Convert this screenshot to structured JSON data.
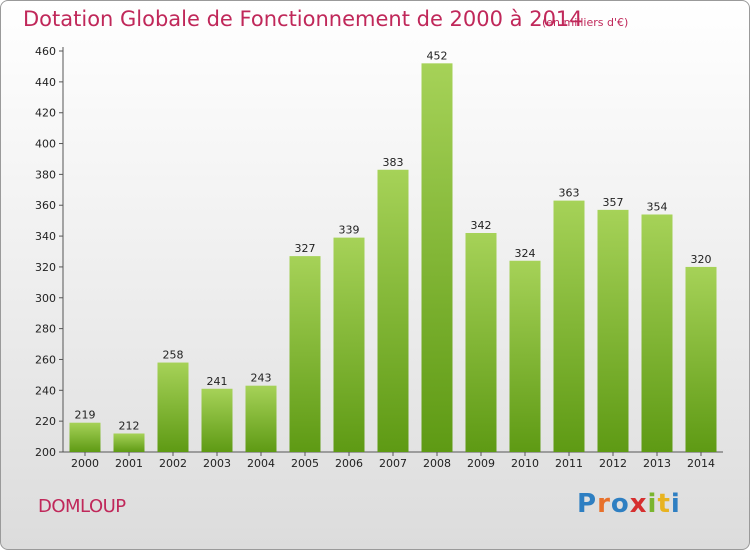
{
  "header": {
    "title": "Dotation Globale de Fonctionnement de 2000 à 2014",
    "unit": "(en milliers d'€)"
  },
  "footer": {
    "commune": "DOMLOUP",
    "logo": "Proxiti"
  },
  "colors": {
    "accent": "#c0285a",
    "bar_top": "#a6d258",
    "bar_bottom": "#5e9a14"
  },
  "chart_data": {
    "type": "bar",
    "title": "Dotation Globale de Fonctionnement de 2000 à 2014",
    "xlabel": "",
    "ylabel": "",
    "categories": [
      "2000",
      "2001",
      "2002",
      "2003",
      "2004",
      "2005",
      "2006",
      "2007",
      "2008",
      "2009",
      "2010",
      "2011",
      "2012",
      "2013",
      "2014"
    ],
    "values": [
      219,
      212,
      258,
      241,
      243,
      327,
      339,
      383,
      452,
      342,
      324,
      363,
      357,
      354,
      320
    ],
    "ylim": [
      200,
      460
    ],
    "yticks": [
      200,
      220,
      240,
      260,
      280,
      300,
      320,
      340,
      360,
      380,
      400,
      420,
      440,
      460
    ],
    "grid": false,
    "legend": "none"
  }
}
